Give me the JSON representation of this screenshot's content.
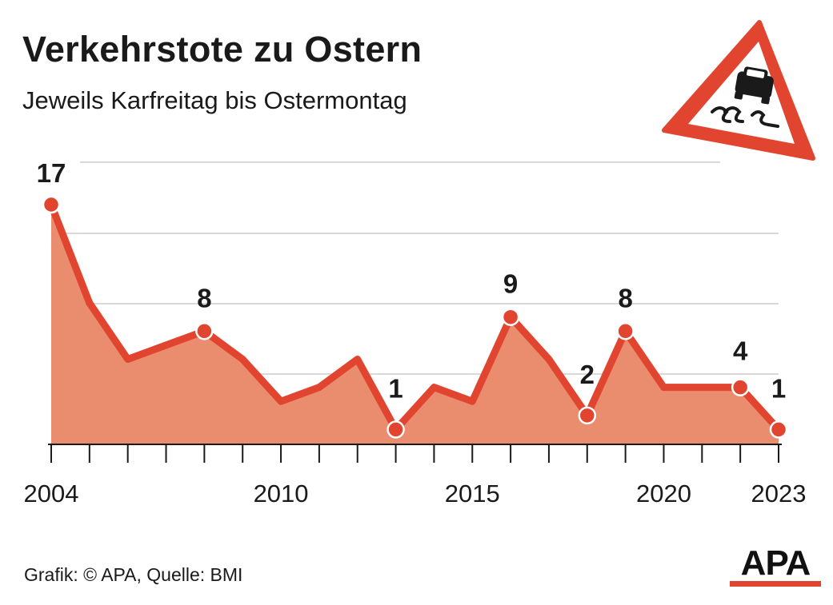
{
  "header": {
    "title": "Verkehrstote zu Ostern",
    "subtitle": "Jeweils Karfreitag bis Ostermontag"
  },
  "footer": {
    "source": "Grafik: © APA, Quelle: BMI",
    "logo_text": "APA"
  },
  "icon": {
    "name": "slippery-road-warning-sign-icon"
  },
  "colors": {
    "line": "#e2452f",
    "area": "#ea8c6e",
    "grid": "#d9d9d9",
    "text": "#1a1a1a"
  },
  "chart_data": {
    "type": "area",
    "title": "Verkehrstote zu Ostern",
    "subtitle": "Jeweils Karfreitag bis Ostermontag",
    "xlabel": "",
    "ylabel": "",
    "x": [
      2004,
      2005,
      2006,
      2007,
      2008,
      2009,
      2010,
      2011,
      2012,
      2013,
      2014,
      2015,
      2016,
      2017,
      2018,
      2019,
      2020,
      2021,
      2022,
      2023
    ],
    "values": [
      17,
      10,
      6,
      7,
      8,
      6,
      3,
      4,
      6,
      1,
      4,
      3,
      9,
      6,
      2,
      8,
      4,
      4,
      4,
      1
    ],
    "xticks_labeled": [
      2004,
      2010,
      2015,
      2020,
      2023
    ],
    "data_labels": [
      {
        "x": 2004,
        "text": "17"
      },
      {
        "x": 2008,
        "text": "8"
      },
      {
        "x": 2013,
        "text": "1"
      },
      {
        "x": 2016,
        "text": "9"
      },
      {
        "x": 2018,
        "text": "2"
      },
      {
        "x": 2019,
        "text": "8"
      },
      {
        "x": 2022,
        "text": "4"
      },
      {
        "x": 2023,
        "text": "1"
      }
    ],
    "ylim": [
      0,
      17
    ],
    "grid": true,
    "legend": "none"
  }
}
